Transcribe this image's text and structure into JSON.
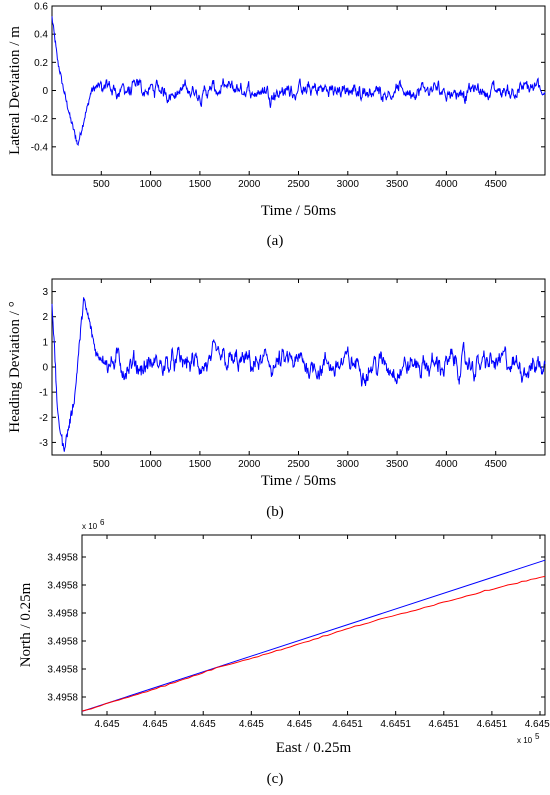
{
  "chart_data": [
    {
      "type": "line",
      "panel_label": "(a)",
      "xlabel": "Time / 50ms",
      "ylabel": "Lateral Deviation / m",
      "xlim": [
        0,
        5000
      ],
      "ylim": [
        -0.6,
        0.6
      ],
      "xticks": [
        "500",
        "1000",
        "1500",
        "2000",
        "2500",
        "3000",
        "3500",
        "4000",
        "4500"
      ],
      "yticks": [
        "0.6",
        "0.4",
        "0.2",
        "0",
        "-0.2",
        "-0.4"
      ],
      "series": [
        {
          "color": "#0000ff",
          "description_points": [
            [
              0,
              0.52
            ],
            [
              60,
              0.2
            ],
            [
              120,
              0.0
            ],
            [
              180,
              -0.18
            ],
            [
              240,
              -0.33
            ],
            [
              260,
              -0.39
            ],
            [
              300,
              -0.28
            ],
            [
              400,
              0.0
            ],
            [
              500,
              0.05
            ]
          ],
          "steady_mean": 0.0,
          "steady_amplitude": 0.12
        }
      ]
    },
    {
      "type": "line",
      "panel_label": "(b)",
      "xlabel": "Time / 50ms",
      "ylabel": "Heading Deviation / °",
      "xlim": [
        0,
        5000
      ],
      "ylim": [
        -3.5,
        3.5
      ],
      "xticks": [
        "500",
        "1000",
        "1500",
        "2000",
        "2500",
        "3000",
        "3500",
        "4000",
        "4500"
      ],
      "yticks": [
        "3",
        "2",
        "1",
        "0",
        "-1",
        "-2",
        "-3"
      ],
      "series": [
        {
          "color": "#0000ff",
          "description_points": [
            [
              0,
              2.6
            ],
            [
              60,
              -2.0
            ],
            [
              120,
              -3.3
            ],
            [
              180,
              -2.2
            ],
            [
              230,
              -1.2
            ],
            [
              280,
              1.0
            ],
            [
              320,
              2.7
            ],
            [
              380,
              1.8
            ],
            [
              450,
              0.5
            ],
            [
              550,
              0.2
            ]
          ],
          "steady_mean": 0.1,
          "steady_amplitude": 1.0
        }
      ]
    },
    {
      "type": "line",
      "panel_label": "(c)",
      "xlabel": "East / 0.25m",
      "ylabel": "North / 0.25m",
      "x_multiplier": "x 10",
      "x_exponent": "5",
      "y_multiplier": "x 10",
      "y_exponent": "6",
      "xticks": [
        "4.645",
        "4.645",
        "4.645",
        "4.645",
        "4.645",
        "4.6451",
        "4.6451",
        "4.6451",
        "4.6451",
        "4.6451"
      ],
      "yticks": [
        "3.4958",
        "3.4958",
        "3.4958",
        "3.4958",
        "3.4958",
        "3.4958"
      ],
      "xlim": [
        0,
        1
      ],
      "ylim": [
        0,
        1
      ],
      "series": [
        {
          "color": "#0000ff",
          "x": [
            0.0,
            1.0
          ],
          "y": [
            0.02,
            0.86
          ]
        },
        {
          "color": "#ff0000",
          "x": [
            0.0,
            0.1,
            0.2,
            0.3,
            0.4,
            0.5,
            0.6,
            0.7,
            0.8,
            0.9,
            1.0
          ],
          "y": [
            0.02,
            0.1,
            0.18,
            0.27,
            0.34,
            0.42,
            0.5,
            0.57,
            0.64,
            0.71,
            0.77
          ]
        }
      ]
    }
  ]
}
